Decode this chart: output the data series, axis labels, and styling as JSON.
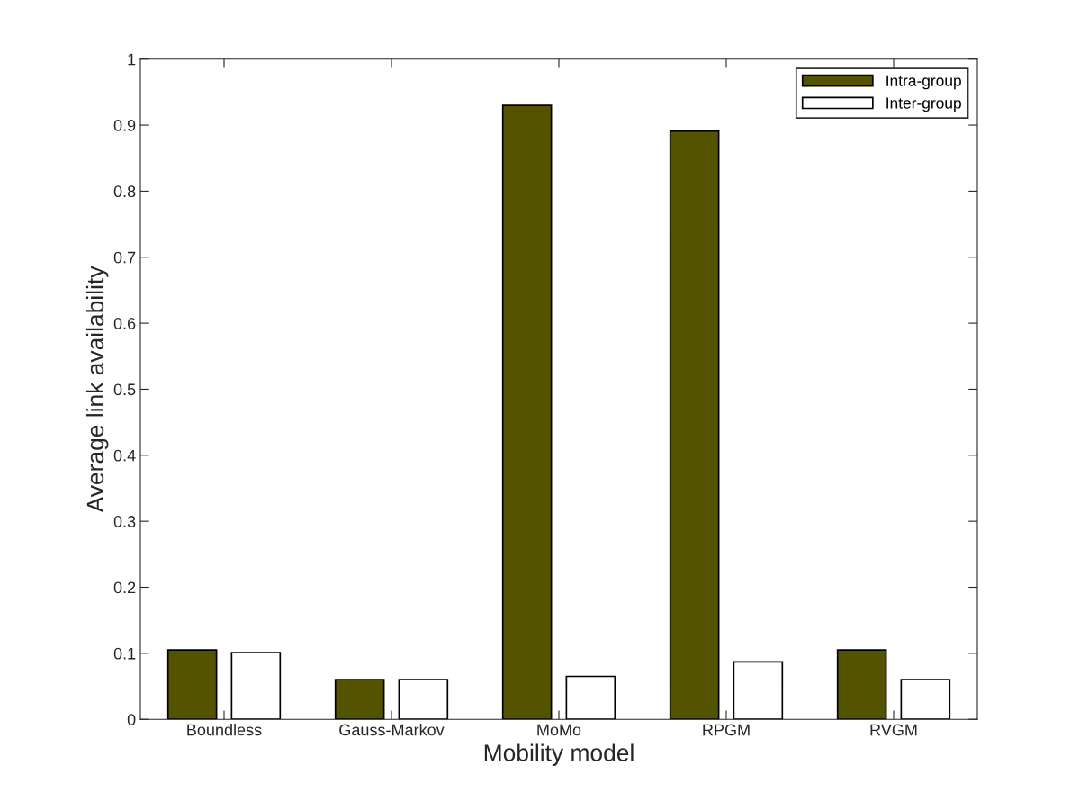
{
  "chart_data": {
    "type": "bar",
    "xlabel": "Mobility model",
    "ylabel": "Average link availability",
    "categories": [
      "Boundless",
      "Gauss-Markov",
      "MoMo",
      "RPGM",
      "RVGM"
    ],
    "series": [
      {
        "name": "Intra-group",
        "color": "#535300",
        "values": [
          0.105,
          0.06,
          0.93,
          0.891,
          0.105
        ]
      },
      {
        "name": "Inter-group",
        "color": "#ffffff",
        "values": [
          0.101,
          0.06,
          0.065,
          0.087,
          0.06
        ]
      }
    ],
    "ylim": [
      0,
      1
    ],
    "yticks": [
      0,
      0.1,
      0.2,
      0.3,
      0.4,
      0.5,
      0.6,
      0.7,
      0.8,
      0.9,
      1
    ],
    "legend": "top right",
    "grid": false
  }
}
